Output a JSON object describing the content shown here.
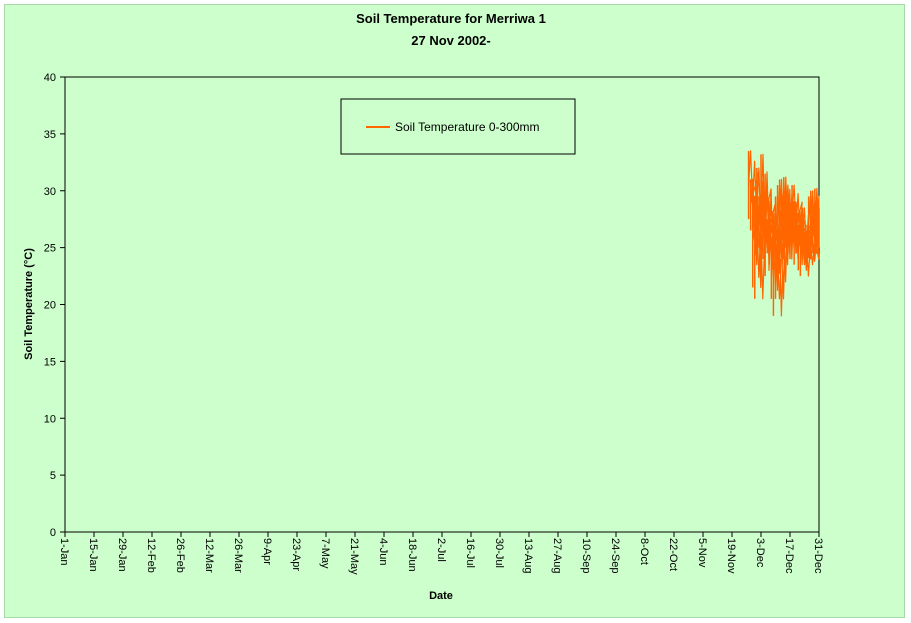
{
  "chart_data": {
    "type": "line",
    "title": "Soil Temperature for Merriwa 1",
    "subtitle": "27 Nov 2002-",
    "xlabel": "Date",
    "ylabel": "Soil Temperature (°C)",
    "ylim": [
      0,
      40
    ],
    "yticks": [
      0,
      5,
      10,
      15,
      20,
      25,
      30,
      35,
      40
    ],
    "xlim": [
      "1-Jan",
      "31-Dec"
    ],
    "xticks": [
      "1-Jan",
      "15-Jan",
      "29-Jan",
      "12-Feb",
      "26-Feb",
      "12-Mar",
      "26-Mar",
      "9-Apr",
      "23-Apr",
      "7-May",
      "21-May",
      "4-Jun",
      "18-Jun",
      "2-Jul",
      "16-Jul",
      "30-Jul",
      "13-Aug",
      "27-Aug",
      "10-Sep",
      "24-Sep",
      "8-Oct",
      "22-Oct",
      "5-Nov",
      "19-Nov",
      "3-Dec",
      "17-Dec",
      "31-Dec"
    ],
    "grid": false,
    "legend_position": "top",
    "series": [
      {
        "name": "Soil Temperature  0-300mm",
        "color": "#ff6600",
        "x": [
          "27-Nov",
          "28-Nov",
          "29-Nov",
          "30-Nov",
          "1-Dec",
          "2-Dec",
          "3-Dec",
          "4-Dec",
          "5-Dec",
          "6-Dec",
          "7-Dec",
          "8-Dec",
          "9-Dec",
          "10-Dec",
          "11-Dec",
          "12-Dec",
          "13-Dec",
          "14-Dec",
          "15-Dec",
          "16-Dec",
          "17-Dec",
          "18-Dec",
          "19-Dec",
          "20-Dec",
          "21-Dec",
          "22-Dec",
          "23-Dec",
          "24-Dec",
          "25-Dec",
          "26-Dec",
          "27-Dec",
          "28-Dec",
          "29-Dec",
          "30-Dec",
          "31-Dec"
        ],
        "min": [
          27.5,
          26.5,
          21.5,
          20.5,
          24.0,
          25.0,
          23.0,
          24.0,
          22.5,
          24.5,
          23.5,
          20.5,
          19.0,
          20.5,
          22.0,
          23.5,
          24.5,
          24.0,
          25.0,
          24.5,
          24.0,
          25.5,
          23.5,
          24.5,
          23.0,
          22.5,
          24.0,
          23.5,
          23.8,
          24.5,
          24.0,
          24.5,
          24.0,
          24.5,
          25.0
        ],
        "max": [
          33.5,
          31.0,
          29.5,
          28.0,
          32.0,
          29.5,
          33.2,
          30.0,
          31.5,
          27.5,
          27.0,
          25.5,
          28.0,
          29.5,
          30.5,
          31.0,
          30.0,
          31.2,
          30.5,
          29.5,
          28.5,
          30.5,
          29.0,
          28.0,
          27.0,
          26.5,
          28.5,
          26.0,
          26.5,
          29.5,
          30.0,
          29.0,
          30.2,
          29.5,
          28.5
        ]
      }
    ]
  }
}
